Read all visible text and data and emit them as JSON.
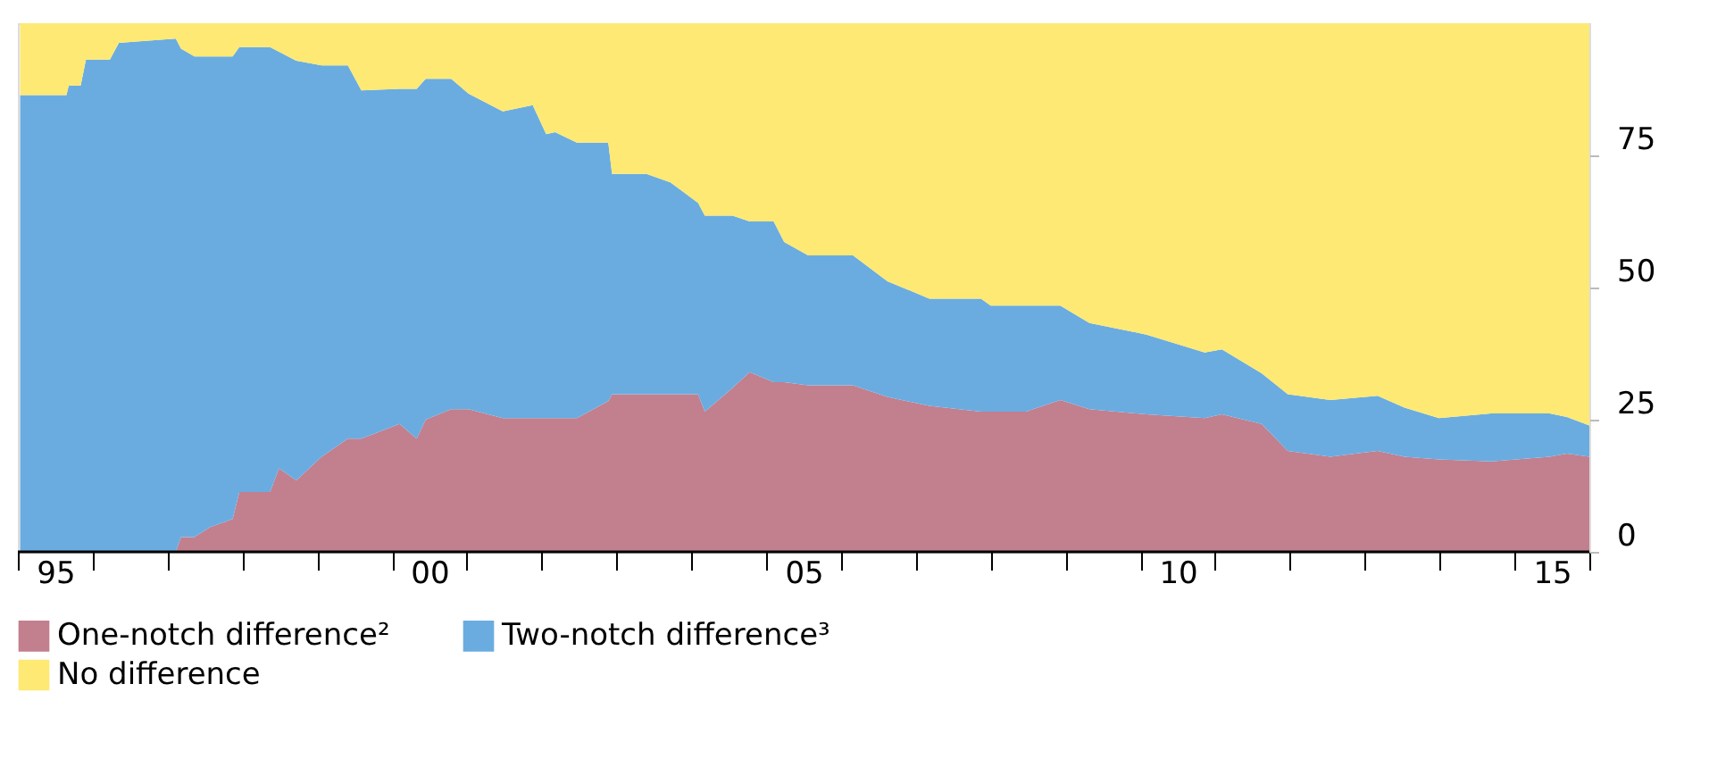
{
  "chart_data": {
    "type": "area",
    "stacked": true,
    "x": [
      1994.53,
      1995.15,
      1995.18,
      1995.34,
      1995.41,
      1995.73,
      1995.85,
      1996.61,
      1996.68,
      1996.86,
      1997.07,
      1997.37,
      1997.46,
      1997.87,
      1997.99,
      1998.22,
      1998.56,
      1998.91,
      1999.09,
      1999.6,
      1999.83,
      1999.95,
      2000.29,
      2000.52,
      2000.98,
      2001.38,
      2001.56,
      2001.68,
      2001.97,
      2002.39,
      2002.44,
      2002.9,
      2003.22,
      2003.59,
      2003.68,
      2004.05,
      2004.28,
      2004.6,
      2004.74,
      2005.06,
      2005.66,
      2006.12,
      2006.68,
      2007.37,
      2007.5,
      2007.97,
      2008.43,
      2008.82,
      2009.58,
      2010.36,
      2010.59,
      2011.12,
      2011.47,
      2012.04,
      2012.67,
      2013.03,
      2013.49,
      2014.19,
      2014.97,
      2015.2,
      2015.5
    ],
    "series": [
      {
        "name": "One-notch difference²",
        "color": "#c27f8e",
        "values": [
          0,
          0,
          0,
          0,
          0,
          0,
          0,
          0,
          2.8,
          2.8,
          4.7,
          6.2,
          11.3,
          11.3,
          15.8,
          13.5,
          18,
          21.4,
          21.4,
          24.2,
          21.4,
          25,
          27,
          27,
          25.3,
          25.3,
          25.3,
          25.3,
          25.3,
          28.5,
          29.8,
          29.8,
          29.8,
          29.8,
          26.5,
          31,
          34,
          32.1,
          32.1,
          31.5,
          31.5,
          29.3,
          27.6,
          26.5,
          26.5,
          26.5,
          28.7,
          27,
          26,
          25.3,
          26,
          24.2,
          19.1,
          18,
          19.1,
          18,
          17.5,
          17.1,
          18,
          18.6,
          18
        ]
      },
      {
        "name": "Two-notch difference³",
        "color": "#6aace0",
        "values": [
          86.4,
          86.4,
          88.2,
          88.2,
          93.1,
          93.1,
          96.3,
          97.1,
          92.4,
          90.9,
          89.0,
          87.5,
          84.2,
          84.2,
          78.8,
          79.4,
          74,
          70.6,
          65.9,
          63.4,
          66.2,
          64.5,
          62.5,
          59.7,
          58,
          59.2,
          53.7,
          54.1,
          52.1,
          48.9,
          41.7,
          41.7,
          40.1,
          36.2,
          37.1,
          32.6,
          28.5,
          30.4,
          26.5,
          24.6,
          24.6,
          21.9,
          20.3,
          21.4,
          20.1,
          20.1,
          17.9,
          16.3,
          15.1,
          12.4,
          12.3,
          9.6,
          10.7,
          10.7,
          10.4,
          9.3,
          7.8,
          9.1,
          8.2,
          6.9,
          5.9
        ]
      },
      {
        "name": "No difference",
        "color": "#fde974",
        "values": [
          13.6,
          13.6,
          11.8,
          11.8,
          6.9,
          6.9,
          3.7,
          2.9,
          4.8,
          6.3,
          6.3,
          6.3,
          4.5,
          4.5,
          5.4,
          7.1,
          8,
          8,
          12.7,
          12.4,
          12.4,
          10.5,
          10.5,
          13.3,
          16.7,
          15.5,
          21,
          20.6,
          22.6,
          22.6,
          28.5,
          28.5,
          30.1,
          34,
          36.4,
          36.4,
          37.5,
          37.5,
          41.4,
          43.9,
          43.9,
          48.8,
          52.1,
          52.1,
          53.4,
          53.4,
          53.4,
          56.7,
          58.9,
          62.3,
          61.7,
          66.2,
          70.2,
          71.3,
          70.5,
          72.7,
          74.7,
          73.8,
          73.8,
          74.5,
          76.1
        ]
      }
    ],
    "xlim": [
      1994.5,
      2015.5
    ],
    "xticks": [
      {
        "value": 1994.5,
        "label": null
      },
      {
        "value": 1995.5,
        "label": null
      },
      {
        "value": 1996.5,
        "label": null
      },
      {
        "value": 1997.5,
        "label": null
      },
      {
        "value": 1998.5,
        "label": null
      },
      {
        "value": 1999.5,
        "label": null
      },
      {
        "value": 2000.5,
        "label": null
      },
      {
        "value": 2001.5,
        "label": null
      },
      {
        "value": 2002.5,
        "label": null
      },
      {
        "value": 2003.5,
        "label": null
      },
      {
        "value": 2004.5,
        "label": null
      },
      {
        "value": 2005.5,
        "label": null
      },
      {
        "value": 2006.5,
        "label": null
      },
      {
        "value": 2007.5,
        "label": null
      },
      {
        "value": 2008.5,
        "label": null
      },
      {
        "value": 2009.5,
        "label": null
      },
      {
        "value": 2010.5,
        "label": null
      },
      {
        "value": 2011.5,
        "label": null
      },
      {
        "value": 2012.5,
        "label": null
      },
      {
        "value": 2013.5,
        "label": null
      },
      {
        "value": 2014.5,
        "label": null
      },
      {
        "value": 2015.5,
        "label": null
      },
      {
        "value": 1995,
        "label": "95"
      },
      {
        "value": 2000,
        "label": "00"
      },
      {
        "value": 2005,
        "label": "05"
      },
      {
        "value": 2010,
        "label": "10"
      },
      {
        "value": 2015,
        "label": "15"
      }
    ],
    "ylim": [
      0,
      100
    ],
    "yticks": [
      0,
      25,
      50,
      75
    ],
    "grid": false,
    "legend": "bottom left"
  }
}
